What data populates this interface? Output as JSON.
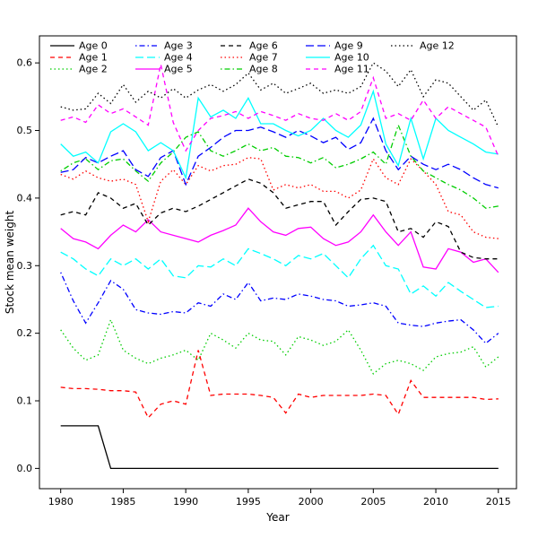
{
  "chart_data": {
    "type": "line",
    "title": "",
    "xlabel": "Year",
    "ylabel": "Stock mean weight",
    "grid": false,
    "legend_position": "top-inside",
    "legend_columns": 5,
    "xlim": [
      1978.3,
      2016.45
    ],
    "ylim": [
      -0.03,
      0.64
    ],
    "xticks": [
      1980,
      1985,
      1990,
      1995,
      2000,
      2005,
      2010,
      2015
    ],
    "yticks": [
      {
        "value": 0.0,
        "label": "0.0"
      },
      {
        "value": 0.1,
        "label": "0.1"
      },
      {
        "value": 0.2,
        "label": "0.2"
      },
      {
        "value": 0.3,
        "label": "0.3"
      },
      {
        "value": 0.4,
        "label": "0.4"
      },
      {
        "value": 0.5,
        "label": "0.5"
      },
      {
        "value": 0.6,
        "label": "0.6"
      }
    ],
    "x": [
      1980,
      1981,
      1982,
      1983,
      1984,
      1985,
      1986,
      1987,
      1988,
      1989,
      1990,
      1991,
      1992,
      1993,
      1994,
      1995,
      1996,
      1997,
      1998,
      1999,
      2000,
      2001,
      2002,
      2003,
      2004,
      2005,
      2006,
      2007,
      2008,
      2009,
      2010,
      2011,
      2012,
      2013,
      2014,
      2015
    ],
    "series": [
      {
        "name": "Age 0",
        "color": "#000000",
        "linetype": "solid",
        "values": [
          0.063,
          0.063,
          0.063,
          0.063,
          0.0,
          0.0,
          0.0,
          0.0,
          0.0,
          0.0,
          0.0,
          0.0,
          0.0,
          0.0,
          0.0,
          0.0,
          0.0,
          0.0,
          0.0,
          0.0,
          0.0,
          0.0,
          0.0,
          0.0,
          0.0,
          0.0,
          0.0,
          0.0,
          0.0,
          0.0,
          0.0,
          0.0,
          0.0,
          0.0,
          0.0,
          0.0
        ]
      },
      {
        "name": "Age 1",
        "color": "#FF0000",
        "linetype": "dashed",
        "values": [
          0.12,
          0.118,
          0.118,
          0.117,
          0.115,
          0.115,
          0.113,
          0.075,
          0.095,
          0.1,
          0.095,
          0.175,
          0.108,
          0.11,
          0.11,
          0.11,
          0.108,
          0.105,
          0.082,
          0.11,
          0.105,
          0.108,
          0.108,
          0.108,
          0.108,
          0.11,
          0.108,
          0.08,
          0.13,
          0.105,
          0.105,
          0.105,
          0.105,
          0.105,
          0.102,
          0.103
        ]
      },
      {
        "name": "Age 2",
        "color": "#00CD00",
        "linetype": "dotted",
        "values": [
          0.205,
          0.178,
          0.16,
          0.168,
          0.22,
          0.175,
          0.163,
          0.155,
          0.163,
          0.168,
          0.175,
          0.16,
          0.2,
          0.19,
          0.178,
          0.2,
          0.19,
          0.188,
          0.168,
          0.195,
          0.19,
          0.182,
          0.188,
          0.205,
          0.175,
          0.14,
          0.155,
          0.16,
          0.155,
          0.145,
          0.165,
          0.17,
          0.172,
          0.18,
          0.15,
          0.165
        ]
      },
      {
        "name": "Age 3",
        "color": "#0000FF",
        "linetype": "dotdash",
        "values": [
          0.29,
          0.248,
          0.215,
          0.245,
          0.278,
          0.265,
          0.235,
          0.23,
          0.228,
          0.232,
          0.23,
          0.245,
          0.24,
          0.258,
          0.25,
          0.275,
          0.248,
          0.252,
          0.25,
          0.258,
          0.255,
          0.25,
          0.248,
          0.24,
          0.242,
          0.245,
          0.24,
          0.215,
          0.212,
          0.21,
          0.215,
          0.218,
          0.22,
          0.205,
          0.185,
          0.2
        ]
      },
      {
        "name": "Age 4",
        "color": "#00FFFF",
        "linetype": "longdash",
        "values": [
          0.32,
          0.31,
          0.295,
          0.285,
          0.31,
          0.3,
          0.31,
          0.295,
          0.31,
          0.285,
          0.282,
          0.3,
          0.298,
          0.31,
          0.3,
          0.325,
          0.318,
          0.31,
          0.3,
          0.315,
          0.31,
          0.318,
          0.3,
          0.282,
          0.31,
          0.33,
          0.3,
          0.295,
          0.258,
          0.27,
          0.255,
          0.275,
          0.262,
          0.25,
          0.238,
          0.24
        ]
      },
      {
        "name": "Age 5",
        "color": "#FF00FF",
        "linetype": "solid",
        "values": [
          0.355,
          0.34,
          0.335,
          0.325,
          0.345,
          0.36,
          0.35,
          0.368,
          0.35,
          0.345,
          0.34,
          0.335,
          0.345,
          0.352,
          0.36,
          0.385,
          0.365,
          0.35,
          0.345,
          0.355,
          0.357,
          0.34,
          0.33,
          0.335,
          0.35,
          0.375,
          0.35,
          0.33,
          0.35,
          0.298,
          0.295,
          0.325,
          0.32,
          0.305,
          0.31,
          0.29
        ]
      },
      {
        "name": "Age 6",
        "color": "#000000",
        "linetype": "dashed",
        "values": [
          0.375,
          0.38,
          0.375,
          0.408,
          0.4,
          0.385,
          0.392,
          0.36,
          0.378,
          0.385,
          0.38,
          0.388,
          0.398,
          0.408,
          0.418,
          0.428,
          0.422,
          0.408,
          0.385,
          0.39,
          0.395,
          0.395,
          0.36,
          0.38,
          0.398,
          0.4,
          0.395,
          0.35,
          0.355,
          0.342,
          0.365,
          0.358,
          0.32,
          0.312,
          0.31,
          0.31
        ]
      },
      {
        "name": "Age 7",
        "color": "#FF0000",
        "linetype": "dotted",
        "values": [
          0.435,
          0.428,
          0.44,
          0.43,
          0.425,
          0.428,
          0.42,
          0.365,
          0.425,
          0.442,
          0.42,
          0.448,
          0.44,
          0.448,
          0.45,
          0.46,
          0.458,
          0.412,
          0.42,
          0.415,
          0.42,
          0.41,
          0.41,
          0.4,
          0.412,
          0.458,
          0.43,
          0.42,
          0.458,
          0.44,
          0.42,
          0.38,
          0.375,
          0.35,
          0.342,
          0.34
        ]
      },
      {
        "name": "Age 8",
        "color": "#00CD00",
        "linetype": "dotdash",
        "values": [
          0.44,
          0.452,
          0.458,
          0.442,
          0.455,
          0.458,
          0.44,
          0.425,
          0.452,
          0.468,
          0.49,
          0.498,
          0.47,
          0.462,
          0.47,
          0.48,
          0.47,
          0.475,
          0.462,
          0.46,
          0.452,
          0.46,
          0.445,
          0.45,
          0.458,
          0.468,
          0.45,
          0.508,
          0.462,
          0.44,
          0.43,
          0.42,
          0.412,
          0.4,
          0.385,
          0.388
        ]
      },
      {
        "name": "Age 9",
        "color": "#0000FF",
        "linetype": "longdash",
        "values": [
          0.438,
          0.442,
          0.46,
          0.452,
          0.462,
          0.47,
          0.442,
          0.432,
          0.46,
          0.47,
          0.42,
          0.462,
          0.475,
          0.49,
          0.5,
          0.5,
          0.505,
          0.498,
          0.49,
          0.5,
          0.492,
          0.482,
          0.49,
          0.472,
          0.482,
          0.518,
          0.47,
          0.442,
          0.462,
          0.45,
          0.442,
          0.45,
          0.442,
          0.43,
          0.42,
          0.415
        ]
      },
      {
        "name": "Age 10",
        "color": "#00FFFF",
        "linetype": "solid",
        "values": [
          0.48,
          0.462,
          0.468,
          0.452,
          0.498,
          0.51,
          0.498,
          0.47,
          0.482,
          0.47,
          0.43,
          0.548,
          0.52,
          0.53,
          0.518,
          0.548,
          0.51,
          0.51,
          0.5,
          0.492,
          0.5,
          0.518,
          0.5,
          0.49,
          0.508,
          0.558,
          0.48,
          0.448,
          0.518,
          0.458,
          0.518,
          0.5,
          0.49,
          0.48,
          0.468,
          0.465
        ]
      },
      {
        "name": "Age 11",
        "color": "#FF00FF",
        "linetype": "dashed",
        "values": [
          0.515,
          0.52,
          0.512,
          0.538,
          0.525,
          0.532,
          0.52,
          0.508,
          0.598,
          0.512,
          0.47,
          0.5,
          0.518,
          0.522,
          0.528,
          0.518,
          0.528,
          0.522,
          0.515,
          0.525,
          0.518,
          0.515,
          0.525,
          0.515,
          0.528,
          0.578,
          0.518,
          0.525,
          0.515,
          0.545,
          0.518,
          0.535,
          0.525,
          0.515,
          0.505,
          0.462
        ]
      },
      {
        "name": "Age 12",
        "color": "#000000",
        "linetype": "dotted",
        "values": [
          0.535,
          0.53,
          0.532,
          0.555,
          0.54,
          0.568,
          0.542,
          0.558,
          0.548,
          0.562,
          0.548,
          0.56,
          0.568,
          0.558,
          0.568,
          0.585,
          0.56,
          0.57,
          0.555,
          0.562,
          0.57,
          0.555,
          0.56,
          0.555,
          0.565,
          0.6,
          0.588,
          0.565,
          0.59,
          0.55,
          0.575,
          0.57,
          0.55,
          0.53,
          0.545,
          0.505
        ]
      }
    ]
  }
}
